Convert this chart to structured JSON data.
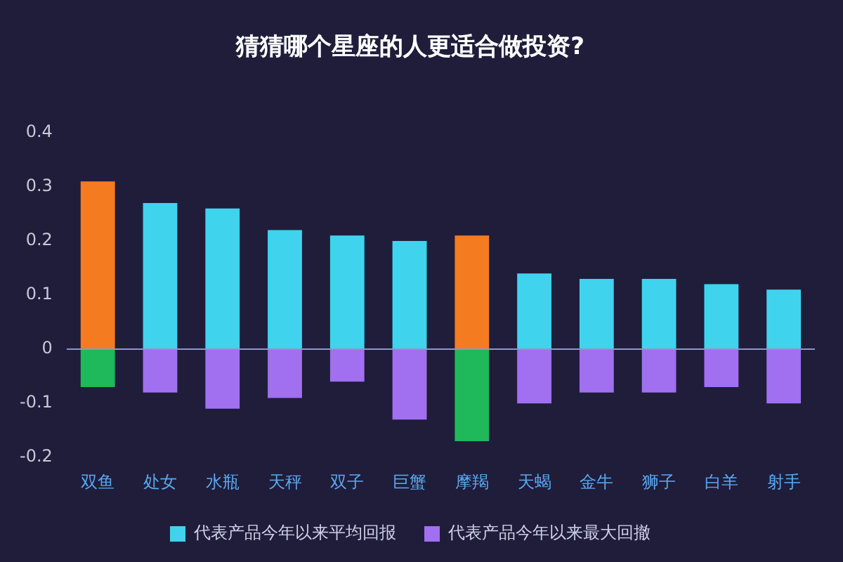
{
  "chart_data": {
    "type": "bar",
    "title": "猜猜哪个星座的人更适合做投资?",
    "categories": [
      "双鱼",
      "处女",
      "水瓶",
      "天秤",
      "双子",
      "巨蟹",
      "摩羯",
      "天蝎",
      "金牛",
      "狮子",
      "白羊",
      "射手"
    ],
    "stacked": true,
    "ylim": [
      -0.2,
      0.4
    ],
    "yticks": [
      -0.2,
      -0.1,
      0,
      0.1,
      0.2,
      0.3,
      0.4
    ],
    "grid": false,
    "legend": "bottom",
    "ref_lines": [
      {
        "axis": "y",
        "value": 0,
        "color": "#8c96c8"
      }
    ],
    "series": [
      {
        "name": "代表产品今年以来平均回报",
        "color": "#3fd3ee",
        "colors": [
          "#f47b20",
          "#3fd3ee",
          "#3fd3ee",
          "#3fd3ee",
          "#3fd3ee",
          "#3fd3ee",
          "#f47b20",
          "#3fd3ee",
          "#3fd3ee",
          "#3fd3ee",
          "#3fd3ee",
          "#3fd3ee"
        ],
        "values": [
          0.31,
          0.27,
          0.26,
          0.22,
          0.21,
          0.2,
          0.21,
          0.14,
          0.13,
          0.13,
          0.12,
          0.11
        ]
      },
      {
        "name": "代表产品今年以来最大回撤",
        "color": "#a070f0",
        "colors": [
          "#1fb85a",
          "#a070f0",
          "#a070f0",
          "#a070f0",
          "#a070f0",
          "#a070f0",
          "#1fb85a",
          "#a070f0",
          "#a070f0",
          "#a070f0",
          "#a070f0",
          "#a070f0"
        ],
        "values": [
          -0.07,
          -0.08,
          -0.11,
          -0.09,
          -0.06,
          -0.13,
          -0.17,
          -0.1,
          -0.08,
          -0.08,
          -0.07,
          -0.1
        ]
      }
    ]
  }
}
